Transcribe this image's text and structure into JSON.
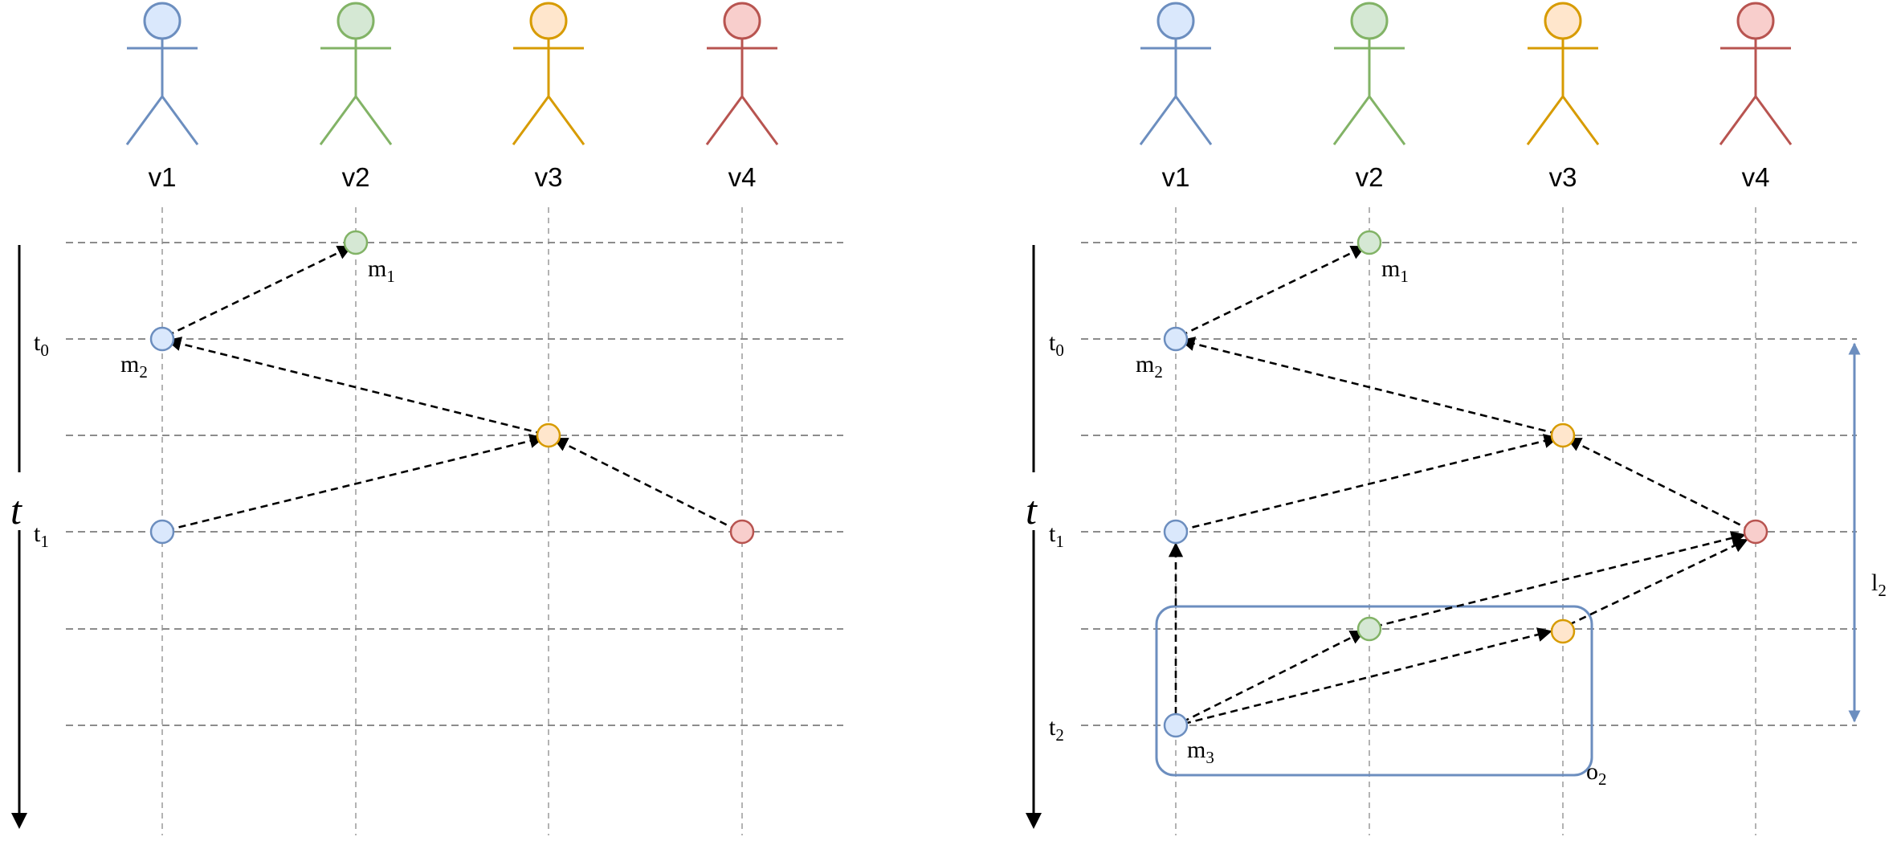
{
  "actors": [
    {
      "label": "v1",
      "color": "#6c8ebf",
      "fill": "#dae8fc"
    },
    {
      "label": "v2",
      "color": "#82b366",
      "fill": "#d5e8d4"
    },
    {
      "label": "v3",
      "color": "#d79b00",
      "fill": "#ffe6cc"
    },
    {
      "label": "v4",
      "color": "#b85450",
      "fill": "#f8cecc"
    }
  ],
  "time_axis_label": "t",
  "left_panel": {
    "time_labels": [
      {
        "main": "t",
        "sub": "0"
      },
      {
        "main": "t",
        "sub": "1"
      }
    ],
    "message_labels": [
      {
        "main": "m",
        "sub": "1"
      },
      {
        "main": "m",
        "sub": "2"
      }
    ]
  },
  "right_panel": {
    "time_labels": [
      {
        "main": "t",
        "sub": "0"
      },
      {
        "main": "t",
        "sub": "1"
      },
      {
        "main": "t",
        "sub": "2"
      }
    ],
    "message_labels": [
      {
        "main": "m",
        "sub": "1"
      },
      {
        "main": "m",
        "sub": "2"
      },
      {
        "main": "m",
        "sub": "3"
      }
    ],
    "box_label": {
      "main": "o",
      "sub": "2"
    },
    "interval_label": {
      "main": "l",
      "sub": "2"
    }
  },
  "colors": {
    "box": "#6c8ebf",
    "interval": "#6c8ebf"
  }
}
